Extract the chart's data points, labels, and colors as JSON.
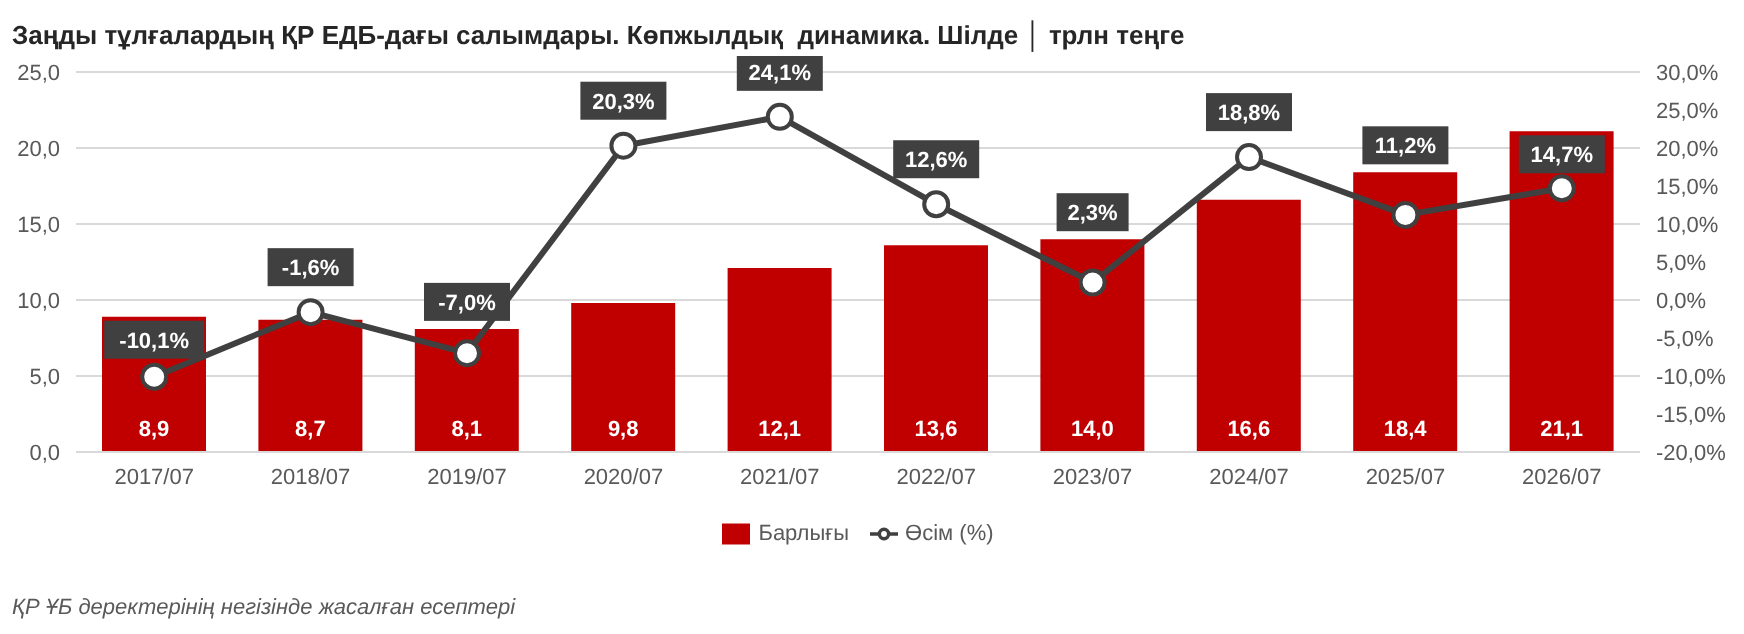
{
  "chart_data": {
    "type": "bar",
    "title": "Заңды тұлғалардың ҚР ЕДБ-дағы салымдары. Көпжылдық  динамика. Шілде │ трлн теңге",
    "categories": [
      "2017/07",
      "2018/07",
      "2019/07",
      "2020/07",
      "2021/07",
      "2022/07",
      "2023/07",
      "2024/07",
      "2025/07",
      "2026/07"
    ],
    "series": [
      {
        "name": "Барлығы",
        "color": "#c00000",
        "values": [
          8.9,
          8.7,
          8.1,
          9.8,
          12.1,
          13.6,
          14.0,
          16.6,
          18.4,
          21.1
        ],
        "value_labels": [
          "8,9",
          "8,7",
          "8,1",
          "9,8",
          "12,1",
          "13,6",
          "14,0",
          "16,6",
          "18,4",
          "21,1"
        ]
      },
      {
        "name": "Өсім (%)",
        "type": "line",
        "axis": "y2",
        "color": "#404040",
        "marker": "circle",
        "values": [
          -10.1,
          -1.6,
          -7.0,
          20.3,
          24.1,
          12.6,
          2.3,
          18.8,
          11.2,
          14.7
        ],
        "value_labels": [
          "-10,1%",
          "-1,6%",
          "-7,0%",
          "20,3%",
          "24,1%",
          "12,6%",
          "2,3%",
          "18,8%",
          "11,2%",
          "14,7%"
        ]
      }
    ],
    "ylim": [
      0,
      25
    ],
    "yticks": [
      {
        "value": 0,
        "label": "0,0"
      },
      {
        "value": 5,
        "label": "5,0"
      },
      {
        "value": 10,
        "label": "10,0"
      },
      {
        "value": 15,
        "label": "15,0"
      },
      {
        "value": 20,
        "label": "20,0"
      },
      {
        "value": 25,
        "label": "25,0"
      }
    ],
    "y2lim": [
      -20,
      30
    ],
    "y2ticks": [
      {
        "value": -20,
        "label": "-20,0%"
      },
      {
        "value": -15,
        "label": "-15,0%"
      },
      {
        "value": -10,
        "label": "-10,0%"
      },
      {
        "value": -5,
        "label": "-5,0%"
      },
      {
        "value": 0,
        "label": "0,0%"
      },
      {
        "value": 5,
        "label": "5,0%"
      },
      {
        "value": 10,
        "label": "10,0%"
      },
      {
        "value": 15,
        "label": "15,0%"
      },
      {
        "value": 20,
        "label": "20,0%"
      },
      {
        "value": 25,
        "label": "25,0%"
      },
      {
        "value": 30,
        "label": "30,0%"
      }
    ],
    "grid": "y",
    "legend": "bottom",
    "annotations": [
      "ҚР ҰБ деректерінің негізінде жасалған есептері"
    ]
  }
}
